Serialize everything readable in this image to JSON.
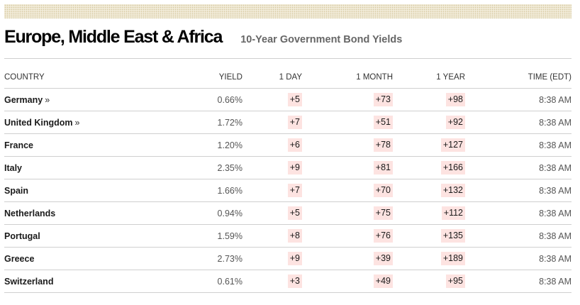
{
  "header": {
    "region": "Europe, Middle East & Africa",
    "subtitle": "10-Year Government Bond Yields"
  },
  "table": {
    "columns": [
      "COUNTRY",
      "YIELD",
      "1 DAY",
      "1 MONTH",
      "1 YEAR",
      "TIME (EDT)"
    ],
    "rows": [
      {
        "country": "Germany",
        "link": "»",
        "yield": "0.66%",
        "day": "+5",
        "month": "+73",
        "year": "+98",
        "time": "8:38 AM"
      },
      {
        "country": "United Kingdom",
        "link": "»",
        "yield": "1.72%",
        "day": "+7",
        "month": "+51",
        "year": "+92",
        "time": "8:38 AM"
      },
      {
        "country": "France",
        "yield": "1.20%",
        "day": "+6",
        "month": "+78",
        "year": "+127",
        "time": "8:38 AM"
      },
      {
        "country": "Italy",
        "yield": "2.35%",
        "day": "+9",
        "month": "+81",
        "year": "+166",
        "time": "8:38 AM"
      },
      {
        "country": "Spain",
        "yield": "1.66%",
        "day": "+7",
        "month": "+70",
        "year": "+132",
        "time": "8:38 AM"
      },
      {
        "country": "Netherlands",
        "yield": "0.94%",
        "day": "+5",
        "month": "+75",
        "year": "+112",
        "time": "8:38 AM"
      },
      {
        "country": "Portugal",
        "yield": "1.59%",
        "day": "+8",
        "month": "+76",
        "year": "+135",
        "time": "8:38 AM"
      },
      {
        "country": "Greece",
        "yield": "2.73%",
        "day": "+9",
        "month": "+39",
        "year": "+189",
        "time": "8:38 AM"
      },
      {
        "country": "Switzerland",
        "yield": "0.61%",
        "day": "+3",
        "month": "+49",
        "year": "+95",
        "time": "8:38 AM"
      }
    ]
  },
  "colors": {
    "change_highlight": "#fde3e1",
    "rule": "#cfcfcf",
    "header_band": "#f1ebd8"
  }
}
